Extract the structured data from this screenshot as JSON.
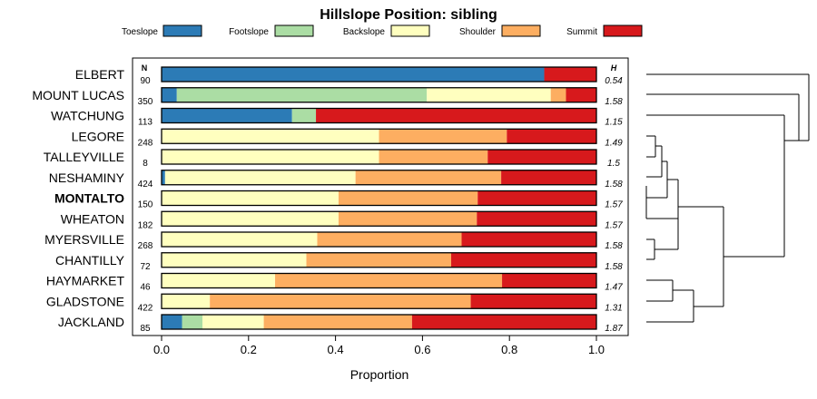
{
  "chart_data": {
    "type": "bar",
    "stacked": true,
    "orientation": "horizontal",
    "title": "Hillslope Position: sibling",
    "xlabel": "Proportion",
    "ylabel": "",
    "xlim": [
      0,
      1
    ],
    "x_ticks": [
      0,
      0.2,
      0.4,
      0.6,
      0.8,
      1
    ],
    "x_tick_labels": [
      "0.0",
      "0.2",
      "0.4",
      "0.6",
      "0.8",
      "1.0"
    ],
    "legend_position": "top",
    "n_header": "N",
    "h_header": "H",
    "highlighted_category": "MONTALTO",
    "categories": [
      "ELBERT",
      "MOUNT LUCAS",
      "WATCHUNG",
      "LEGORE",
      "TALLEYVILLE",
      "NESHAMINY",
      "MONTALTO",
      "WHEATON",
      "MYERSVILLE",
      "CHANTILLY",
      "HAYMARKET",
      "GLADSTONE",
      "JACKLAND"
    ],
    "n_values": [
      "90",
      "350",
      "113",
      "248",
      "8",
      "424",
      "150",
      "182",
      "268",
      "72",
      "46",
      "422",
      "85"
    ],
    "h_values": [
      "0.54",
      "1.58",
      "1.15",
      "1.49",
      "1.5",
      "1.58",
      "1.57",
      "1.57",
      "1.58",
      "1.58",
      "1.47",
      "1.31",
      "1.87"
    ],
    "series": [
      {
        "name": "Toeslope",
        "color": "#2c7bb6",
        "values": [
          0.88,
          0.035,
          0.3,
          0,
          0,
          0.008,
          0,
          0,
          0,
          0,
          0,
          0,
          0.047
        ]
      },
      {
        "name": "Footslope",
        "color": "#abdda4",
        "values": [
          0,
          0.575,
          0.055,
          0,
          0,
          0,
          0,
          0,
          0,
          0,
          0,
          0,
          0.047
        ]
      },
      {
        "name": "Backslope",
        "color": "#ffffbf",
        "values": [
          0,
          0.285,
          0,
          0.5,
          0.5,
          0.438,
          0.407,
          0.407,
          0.358,
          0.333,
          0.261,
          0.111,
          0.141
        ]
      },
      {
        "name": "Shoulder",
        "color": "#fdae61",
        "values": [
          0,
          0.035,
          0,
          0.294,
          0.25,
          0.335,
          0.32,
          0.318,
          0.332,
          0.333,
          0.522,
          0.6,
          0.341
        ]
      },
      {
        "name": "Summit",
        "color": "#d7191c",
        "values": [
          0.12,
          0.07,
          0.645,
          0.206,
          0.25,
          0.219,
          0.273,
          0.275,
          0.31,
          0.334,
          0.217,
          0.289,
          0.424
        ]
      }
    ]
  }
}
